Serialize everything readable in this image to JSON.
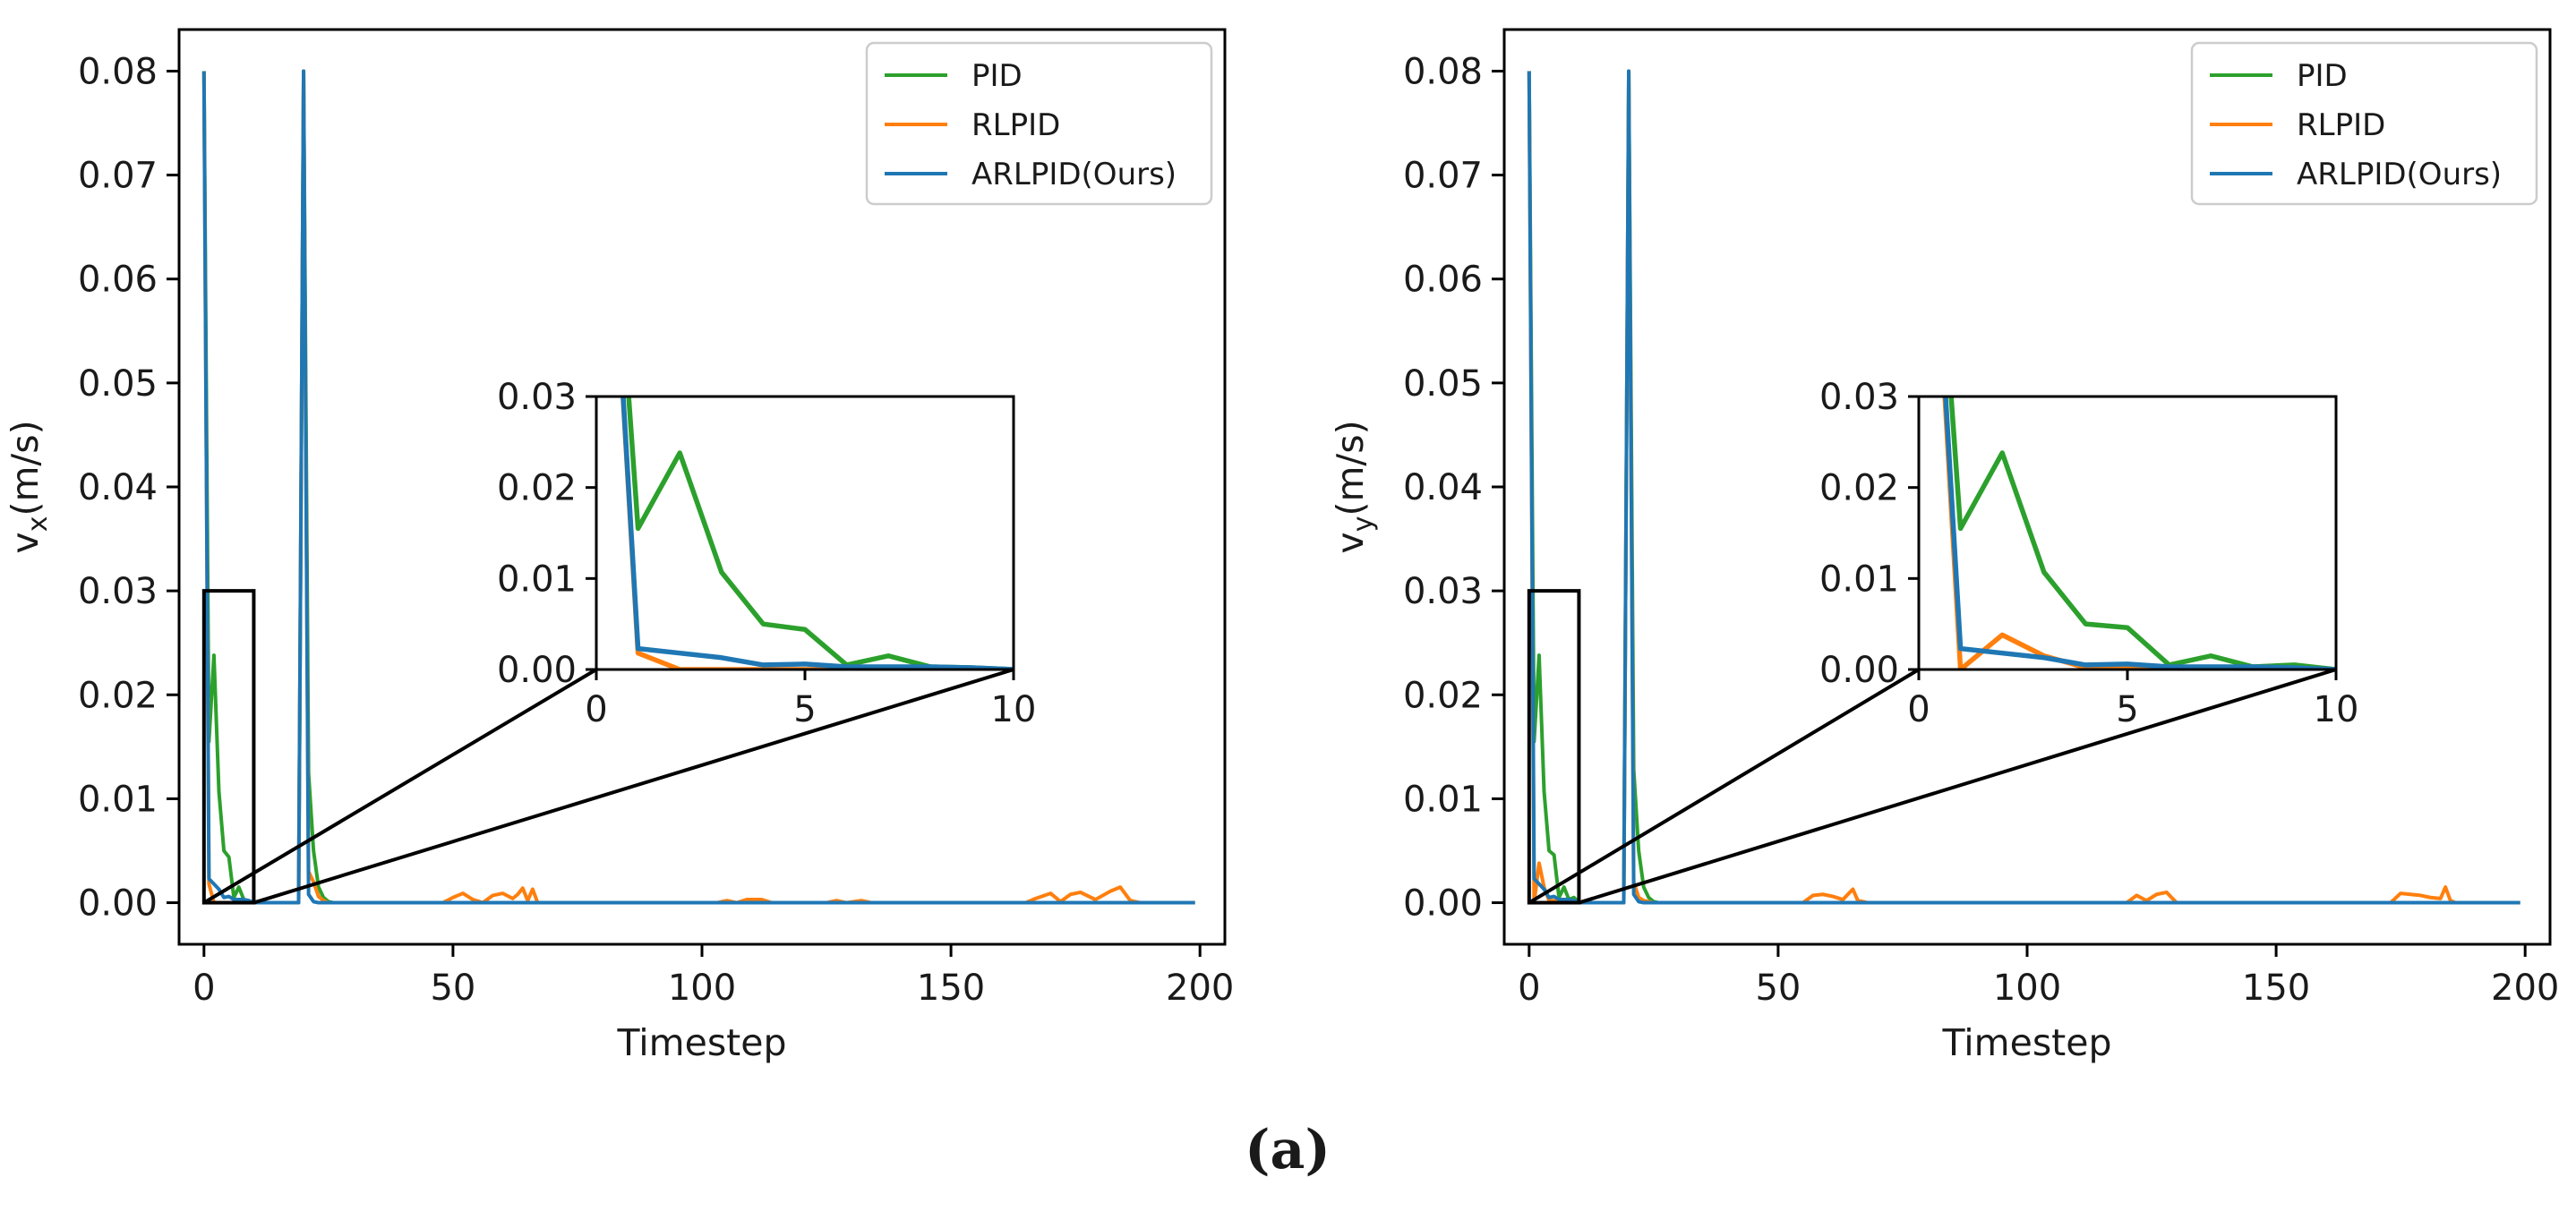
{
  "figure_caption": "(a)",
  "colors": {
    "PID": "#2ca02c",
    "RLPID": "#ff7f0e",
    "ARLPID": "#1f77b4",
    "axes": "#000000"
  },
  "chart_data": [
    {
      "type": "line",
      "ylabel_main": "v",
      "ylabel_sub": "x",
      "ylabel_unit": "(m/s)",
      "xlabel": "Timestep",
      "xlim": [
        -5,
        205
      ],
      "ylim": [
        -0.004,
        0.084
      ],
      "xticks": [
        0,
        50,
        100,
        150,
        200
      ],
      "yticks": [
        0.0,
        0.01,
        0.02,
        0.03,
        0.04,
        0.05,
        0.06,
        0.07,
        0.08
      ],
      "legend": [
        "PID",
        "RLPID",
        "ARLPID(Ours)"
      ],
      "legend_position": "top-right",
      "series": [
        {
          "name": "PID",
          "color": "#2ca02c",
          "x": [
            0,
            1,
            2,
            3,
            4,
            5,
            6,
            7,
            8,
            9,
            10,
            11,
            12,
            13,
            14,
            15,
            16,
            17,
            18,
            19,
            20,
            21,
            22,
            23,
            24,
            25,
            26,
            199
          ],
          "y": [
            0.08,
            0.0155,
            0.0238,
            0.0107,
            0.005,
            0.0044,
            0.0005,
            0.0015,
            0.0003,
            0.0002,
            0,
            0,
            0,
            0,
            0,
            0,
            0,
            0,
            0,
            0,
            0.08,
            0.0125,
            0.005,
            0.0015,
            0.0005,
            0.0001,
            0,
            0
          ]
        },
        {
          "name": "RLPID",
          "color": "#ff7f0e",
          "x": [
            0,
            1,
            2,
            3,
            4,
            5,
            6,
            7,
            8,
            9,
            10,
            11,
            12,
            13,
            14,
            15,
            16,
            17,
            18,
            19,
            20,
            21,
            22,
            23,
            24,
            25,
            48,
            50,
            52,
            54,
            56,
            58,
            60,
            62,
            63,
            64,
            65,
            66,
            67,
            103,
            105,
            107,
            109,
            112,
            114,
            125,
            127,
            129,
            132,
            134,
            165,
            167,
            170,
            172,
            174,
            176,
            179,
            182,
            184,
            186,
            188,
            199
          ],
          "y": [
            0.08,
            0.0018,
            0,
            0,
            0,
            0,
            0,
            0,
            0,
            0,
            0,
            0,
            0,
            0,
            0,
            0,
            0,
            0,
            0,
            0,
            0.08,
            0.003,
            0.002,
            0.0006,
            0.0002,
            0,
            0,
            0.0005,
            0.0009,
            0.0003,
            0,
            0.0007,
            0.0009,
            0.0004,
            0.0008,
            0.0014,
            0.0002,
            0.0013,
            0,
            0,
            0.0002,
            0,
            0.0003,
            0.0003,
            0,
            0,
            0.0002,
            0,
            0.0002,
            0,
            0,
            0.0004,
            0.0009,
            0.0001,
            0.0008,
            0.001,
            0.0003,
            0.0011,
            0.0015,
            0.0002,
            0,
            0
          ]
        },
        {
          "name": "ARLPID(Ours)",
          "color": "#1f77b4",
          "x": [
            0,
            1,
            2,
            3,
            4,
            5,
            6,
            7,
            8,
            9,
            10,
            11,
            12,
            13,
            14,
            15,
            16,
            17,
            18,
            19,
            20,
            21,
            22,
            23,
            199
          ],
          "y": [
            0.08,
            0.0023,
            0.0018,
            0.0013,
            0.0005,
            0.0006,
            0.0003,
            0.0003,
            0.0003,
            0.0002,
            0,
            0,
            0,
            0,
            0,
            0,
            0,
            0,
            0,
            0,
            0.08,
            0.0008,
            0.0001,
            0,
            0
          ]
        }
      ],
      "inset": {
        "xlim": [
          0,
          10
        ],
        "ylim": [
          0,
          0.03
        ],
        "xticks": [
          0,
          5,
          10
        ],
        "yticks": [
          0.0,
          0.01,
          0.02,
          0.03
        ]
      }
    },
    {
      "type": "line",
      "ylabel_main": "v",
      "ylabel_sub": "y",
      "ylabel_unit": "(m/s)",
      "xlabel": "Timestep",
      "xlim": [
        -5,
        205
      ],
      "ylim": [
        -0.004,
        0.084
      ],
      "xticks": [
        0,
        50,
        100,
        150,
        200
      ],
      "yticks": [
        0.0,
        0.01,
        0.02,
        0.03,
        0.04,
        0.05,
        0.06,
        0.07,
        0.08
      ],
      "legend": [
        "PID",
        "RLPID",
        "ARLPID(Ours)"
      ],
      "legend_position": "top-right",
      "series": [
        {
          "name": "PID",
          "color": "#2ca02c",
          "x": [
            0,
            1,
            2,
            3,
            4,
            5,
            6,
            7,
            8,
            9,
            10,
            11,
            12,
            13,
            14,
            15,
            16,
            17,
            18,
            19,
            20,
            21,
            22,
            23,
            24,
            25,
            26,
            199
          ],
          "y": [
            0.08,
            0.0155,
            0.0238,
            0.0107,
            0.005,
            0.0046,
            0.0005,
            0.0015,
            0.0003,
            0.0005,
            0,
            0,
            0,
            0,
            0,
            0,
            0,
            0,
            0,
            0,
            0.08,
            0.0128,
            0.005,
            0.0015,
            0.0005,
            0.0001,
            0,
            0
          ]
        },
        {
          "name": "RLPID",
          "color": "#ff7f0e",
          "x": [
            0,
            1,
            2,
            3,
            4,
            5,
            6,
            7,
            8,
            9,
            10,
            11,
            12,
            13,
            14,
            15,
            16,
            17,
            18,
            19,
            20,
            21,
            22,
            23,
            24,
            25,
            55,
            57,
            59,
            61,
            63,
            65,
            66,
            67,
            68,
            120,
            122,
            124,
            126,
            128,
            130,
            173,
            175,
            177,
            179,
            181,
            183,
            184,
            185,
            186,
            199
          ],
          "y": [
            0.08,
            0,
            0.0038,
            0.0015,
            0.0002,
            0.0002,
            0,
            0.0001,
            0,
            0,
            0,
            0,
            0,
            0,
            0,
            0,
            0,
            0,
            0,
            0,
            0.08,
            0.002,
            0.0005,
            0.0002,
            0.0001,
            0,
            0,
            0.0007,
            0.0008,
            0.0006,
            0.0003,
            0.0013,
            0.0002,
            0.0001,
            0,
            0,
            0.0007,
            0.0002,
            0.0008,
            0.001,
            0,
            0,
            0.0009,
            0.0008,
            0.0007,
            0.0005,
            0.0004,
            0.0015,
            0.0002,
            0,
            0
          ]
        },
        {
          "name": "ARLPID(Ours)",
          "color": "#1f77b4",
          "x": [
            0,
            1,
            2,
            3,
            4,
            5,
            6,
            7,
            8,
            9,
            10,
            11,
            12,
            13,
            14,
            15,
            16,
            17,
            18,
            19,
            20,
            21,
            22,
            23,
            199
          ],
          "y": [
            0.08,
            0.0023,
            0.0018,
            0.0013,
            0.0005,
            0.0006,
            0.0003,
            0.0003,
            0.0003,
            0.0002,
            0,
            0,
            0,
            0,
            0,
            0,
            0,
            0,
            0,
            0,
            0.08,
            0.0008,
            0.0001,
            0,
            0
          ]
        }
      ],
      "inset": {
        "xlim": [
          0,
          10
        ],
        "ylim": [
          0,
          0.03
        ],
        "xticks": [
          0,
          5,
          10
        ],
        "yticks": [
          0.0,
          0.01,
          0.02,
          0.03
        ]
      }
    }
  ]
}
